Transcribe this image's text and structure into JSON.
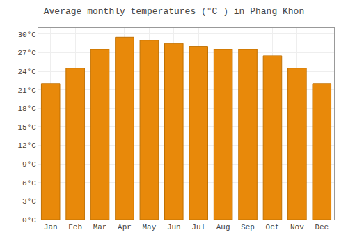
{
  "chart_data": {
    "type": "bar",
    "title": "Average monthly temperatures (°C ) in Phang Khon",
    "categories": [
      "Jan",
      "Feb",
      "Mar",
      "Apr",
      "May",
      "Jun",
      "Jul",
      "Aug",
      "Sep",
      "Oct",
      "Nov",
      "Dec"
    ],
    "values": [
      22.0,
      24.5,
      27.5,
      29.5,
      29.0,
      28.5,
      28.0,
      27.5,
      27.5,
      26.5,
      24.5,
      22.0
    ],
    "color": "#E8890A",
    "ylim": [
      0,
      31
    ],
    "yticks": [
      {
        "value": 0,
        "label": "0°C"
      },
      {
        "value": 3,
        "label": "3°C"
      },
      {
        "value": 6,
        "label": "6°C"
      },
      {
        "value": 9,
        "label": "9°C"
      },
      {
        "value": 12,
        "label": "12°C"
      },
      {
        "value": 15,
        "label": "15°C"
      },
      {
        "value": 18,
        "label": "18°C"
      },
      {
        "value": 21,
        "label": "21°C"
      },
      {
        "value": 24,
        "label": "24°C"
      },
      {
        "value": 27,
        "label": "27°C"
      },
      {
        "value": 30,
        "label": "30°C"
      }
    ],
    "grid": true
  }
}
